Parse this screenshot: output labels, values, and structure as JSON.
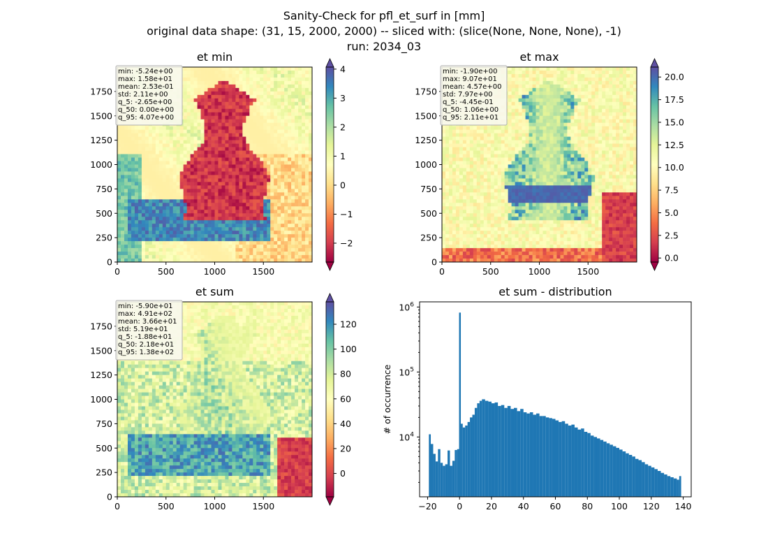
{
  "figure": {
    "title_lines": [
      "Sanity-Check for pfl_et_surf in [mm]",
      "original data shape: (31, 15, 2000, 2000) -- sliced with: (slice(None, None, None), -1)",
      "run: 2034_03"
    ]
  },
  "chart_data": [
    {
      "type": "heatmap",
      "title": "et min",
      "xlim": [
        0,
        2000
      ],
      "ylim": [
        0,
        2000
      ],
      "xticks": [
        0,
        500,
        1000,
        1500
      ],
      "yticks": [
        0,
        250,
        500,
        750,
        1000,
        1250,
        1500,
        1750
      ],
      "colormap": "Spectral",
      "colorbar": {
        "ticks": [
          "−2",
          "−1",
          "0",
          "1",
          "2",
          "3",
          "4"
        ],
        "tick_values": [
          -2,
          -1,
          0,
          1,
          2,
          3,
          4
        ],
        "range": [
          -2.65,
          4.07
        ],
        "extend": "both"
      },
      "stats": [
        "min: -5.24e+00",
        "max: 1.58e+01",
        "mean: 2.53e-01",
        "std: 2.11e+00",
        "q_5: -2.65e+00",
        "q_50: 0.00e+00",
        "q_95: 4.07e+00"
      ]
    },
    {
      "type": "heatmap",
      "title": "et max",
      "xlim": [
        0,
        2000
      ],
      "ylim": [
        0,
        2000
      ],
      "xticks": [
        0,
        500,
        1000,
        1500
      ],
      "yticks": [
        0,
        250,
        500,
        750,
        1000,
        1250,
        1500,
        1750
      ],
      "colormap": "Spectral",
      "colorbar": {
        "ticks": [
          "0.0",
          "2.5",
          "5.0",
          "7.5",
          "10.0",
          "12.5",
          "15.0",
          "17.5",
          "20.0"
        ],
        "tick_values": [
          0,
          2.5,
          5,
          7.5,
          10,
          12.5,
          15,
          17.5,
          20
        ],
        "range": [
          -0.445,
          21.1
        ],
        "extend": "both"
      },
      "stats": [
        "min: -1.90e+00",
        "max: 9.07e+01",
        "mean: 4.57e+00",
        "std: 7.97e+00",
        "q_5: -4.45e-01",
        "q_50: 1.06e+00",
        "q_95: 2.11e+01"
      ]
    },
    {
      "type": "heatmap",
      "title": "et sum",
      "xlim": [
        0,
        2000
      ],
      "ylim": [
        0,
        2000
      ],
      "xticks": [
        0,
        500,
        1000,
        1500
      ],
      "yticks": [
        0,
        250,
        500,
        750,
        1000,
        1250,
        1500,
        1750
      ],
      "colormap": "Spectral",
      "colorbar": {
        "ticks": [
          "0",
          "20",
          "40",
          "60",
          "80",
          "100",
          "120"
        ],
        "tick_values": [
          0,
          20,
          40,
          60,
          80,
          100,
          120
        ],
        "range": [
          -18.8,
          138
        ],
        "extend": "both"
      },
      "stats": [
        "min: -5.90e+01",
        "max: 4.91e+02",
        "mean: 3.66e+01",
        "std: 5.19e+01",
        "q_5: -1.88e+01",
        "q_50: 2.18e+01",
        "q_95: 1.38e+02"
      ]
    },
    {
      "type": "bar",
      "title": "et sum - distribution",
      "ylabel": "# of occurrence",
      "yscale": "log",
      "xlim": [
        -25,
        145
      ],
      "ylim": [
        1200,
        1200000
      ],
      "xticks": [
        -20,
        0,
        20,
        40,
        60,
        80,
        100,
        120,
        140
      ],
      "yticks": [
        {
          "value": 10000,
          "base": "10",
          "exp": "4"
        },
        {
          "value": 100000,
          "base": "10",
          "exp": "5"
        },
        {
          "value": 1000000,
          "base": "10",
          "exp": "6"
        }
      ],
      "color": "#1f77b4",
      "bins": [
        {
          "x": -19.2,
          "y": 11000
        },
        {
          "x": -18,
          "y": 7800
        },
        {
          "x": -16.5,
          "y": 5500
        },
        {
          "x": -15,
          "y": 4200
        },
        {
          "x": -13.5,
          "y": 6500
        },
        {
          "x": -12,
          "y": 4000
        },
        {
          "x": -10.5,
          "y": 3600
        },
        {
          "x": -9,
          "y": 3800
        },
        {
          "x": -7.5,
          "y": 6200
        },
        {
          "x": -6,
          "y": 3600
        },
        {
          "x": -4.5,
          "y": 4300
        },
        {
          "x": -3,
          "y": 6300
        },
        {
          "x": -1.5,
          "y": 6500
        },
        {
          "x": -0.3,
          "y": 820000
        },
        {
          "x": 0.8,
          "y": 16000
        },
        {
          "x": 2,
          "y": 14000
        },
        {
          "x": 3.5,
          "y": 15000
        },
        {
          "x": 5,
          "y": 17000
        },
        {
          "x": 6.5,
          "y": 20000
        },
        {
          "x": 8,
          "y": 22000
        },
        {
          "x": 9.5,
          "y": 28000
        },
        {
          "x": 11,
          "y": 33000
        },
        {
          "x": 12.5,
          "y": 36000
        },
        {
          "x": 14,
          "y": 38000
        },
        {
          "x": 16,
          "y": 36000
        },
        {
          "x": 18,
          "y": 35000
        },
        {
          "x": 20,
          "y": 33000
        },
        {
          "x": 22,
          "y": 34000
        },
        {
          "x": 24,
          "y": 30000
        },
        {
          "x": 26,
          "y": 31000
        },
        {
          "x": 28,
          "y": 28000
        },
        {
          "x": 30,
          "y": 30000
        },
        {
          "x": 32,
          "y": 27000
        },
        {
          "x": 34,
          "y": 28000
        },
        {
          "x": 36,
          "y": 25000
        },
        {
          "x": 38,
          "y": 27000
        },
        {
          "x": 40,
          "y": 24000
        },
        {
          "x": 42,
          "y": 23000
        },
        {
          "x": 44,
          "y": 24000
        },
        {
          "x": 46,
          "y": 22000
        },
        {
          "x": 48,
          "y": 23000
        },
        {
          "x": 50,
          "y": 21000
        },
        {
          "x": 52,
          "y": 21000
        },
        {
          "x": 54,
          "y": 20000
        },
        {
          "x": 56,
          "y": 19500
        },
        {
          "x": 58,
          "y": 19000
        },
        {
          "x": 60,
          "y": 18000
        },
        {
          "x": 62,
          "y": 17000
        },
        {
          "x": 64,
          "y": 17500
        },
        {
          "x": 66,
          "y": 16000
        },
        {
          "x": 68,
          "y": 15000
        },
        {
          "x": 70,
          "y": 15500
        },
        {
          "x": 72,
          "y": 14000
        },
        {
          "x": 74,
          "y": 13000
        },
        {
          "x": 76,
          "y": 13500
        },
        {
          "x": 78,
          "y": 12000
        },
        {
          "x": 80,
          "y": 11500
        },
        {
          "x": 82,
          "y": 10500
        },
        {
          "x": 84,
          "y": 10000
        },
        {
          "x": 86,
          "y": 9500
        },
        {
          "x": 88,
          "y": 9000
        },
        {
          "x": 90,
          "y": 8500
        },
        {
          "x": 92,
          "y": 8000
        },
        {
          "x": 94,
          "y": 7600
        },
        {
          "x": 96,
          "y": 7200
        },
        {
          "x": 98,
          "y": 6800
        },
        {
          "x": 100,
          "y": 6400
        },
        {
          "x": 102,
          "y": 6000
        },
        {
          "x": 104,
          "y": 5600
        },
        {
          "x": 106,
          "y": 5300
        },
        {
          "x": 108,
          "y": 5000
        },
        {
          "x": 110,
          "y": 4600
        },
        {
          "x": 112,
          "y": 4400
        },
        {
          "x": 114,
          "y": 4100
        },
        {
          "x": 116,
          "y": 3800
        },
        {
          "x": 118,
          "y": 3600
        },
        {
          "x": 120,
          "y": 3400
        },
        {
          "x": 122,
          "y": 3200
        },
        {
          "x": 124,
          "y": 3000
        },
        {
          "x": 126,
          "y": 2800
        },
        {
          "x": 128,
          "y": 2650
        },
        {
          "x": 130,
          "y": 2500
        },
        {
          "x": 132,
          "y": 2400
        },
        {
          "x": 134,
          "y": 2300
        },
        {
          "x": 136,
          "y": 2200
        },
        {
          "x": 137.5,
          "y": 2500
        }
      ]
    }
  ]
}
